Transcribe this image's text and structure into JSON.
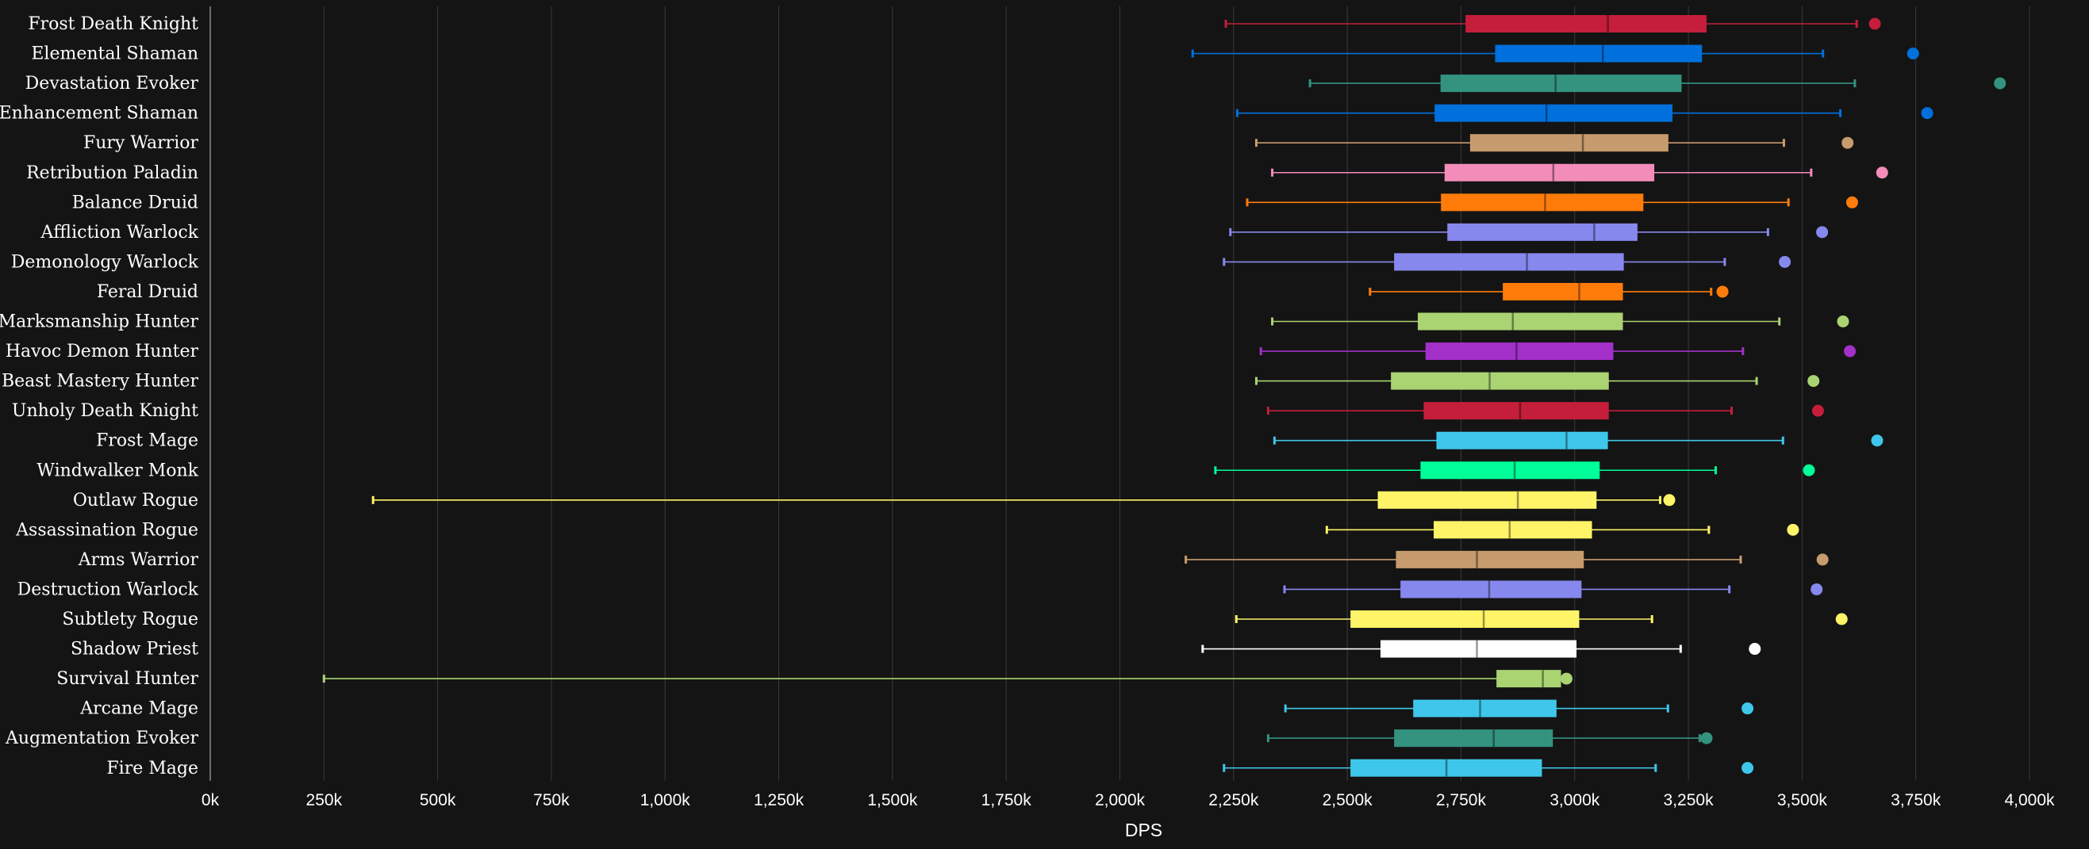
{
  "chart_data": {
    "type": "boxplot",
    "xlabel": "DPS",
    "title": "",
    "xlim": [
      0,
      4000
    ],
    "x_ticks": [
      0,
      250,
      500,
      750,
      1000,
      1250,
      1500,
      1750,
      2000,
      2250,
      2500,
      2750,
      3000,
      3250,
      3500,
      3750,
      4000
    ],
    "x_tick_labels": [
      "0k",
      "250k",
      "500k",
      "750k",
      "1,000k",
      "1,250k",
      "1,500k",
      "1,750k",
      "2,000k",
      "2,250k",
      "2,500k",
      "2,750k",
      "3,000k",
      "3,250k",
      "3,500k",
      "3,750k",
      "4,000k"
    ],
    "grid": true,
    "units": "thousands",
    "series": [
      {
        "name": "Frost Death Knight",
        "min": 2233,
        "q1": 2760,
        "median": 3073,
        "q3": 3290,
        "max": 3620,
        "outlier": 3660,
        "color": "#C41E3A"
      },
      {
        "name": "Elemental Shaman",
        "min": 2160,
        "q1": 2825,
        "median": 3062,
        "q3": 3280,
        "max": 3546,
        "outlier": 3744,
        "color": "#0070DD"
      },
      {
        "name": "Devastation Evoker",
        "min": 2418,
        "q1": 2705,
        "median": 2958,
        "q3": 3235,
        "max": 3616,
        "outlier": 3935,
        "color": "#33937F"
      },
      {
        "name": "Enhancement Shaman",
        "min": 2258,
        "q1": 2692,
        "median": 2938,
        "q3": 3215,
        "max": 3584,
        "outlier": 3775,
        "color": "#0070DD"
      },
      {
        "name": "Fury Warrior",
        "min": 2300,
        "q1": 2770,
        "median": 3018,
        "q3": 3206,
        "max": 3460,
        "outlier": 3600,
        "color": "#C69B6D"
      },
      {
        "name": "Retribution Paladin",
        "min": 2335,
        "q1": 2714,
        "median": 2953,
        "q3": 3175,
        "max": 3520,
        "outlier": 3676,
        "color": "#F48CBA"
      },
      {
        "name": "Balance Druid",
        "min": 2280,
        "q1": 2706,
        "median": 2935,
        "q3": 3151,
        "max": 3470,
        "outlier": 3610,
        "color": "#FF7C0A"
      },
      {
        "name": "Affliction Warlock",
        "min": 2243,
        "q1": 2720,
        "median": 3043,
        "q3": 3138,
        "max": 3425,
        "outlier": 3544,
        "color": "#8788EE"
      },
      {
        "name": "Demonology Warlock",
        "min": 2229,
        "q1": 2603,
        "median": 2895,
        "q3": 3108,
        "max": 3330,
        "outlier": 3462,
        "color": "#8788EE"
      },
      {
        "name": "Feral Druid",
        "min": 2550,
        "q1": 2842,
        "median": 3010,
        "q3": 3106,
        "max": 3300,
        "outlier": 3325,
        "color": "#FF7C0A"
      },
      {
        "name": "Marksmanship Hunter",
        "min": 2335,
        "q1": 2655,
        "median": 2864,
        "q3": 3106,
        "max": 3450,
        "outlier": 3590,
        "color": "#AAD372"
      },
      {
        "name": "Havoc Demon Hunter",
        "min": 2310,
        "q1": 2672,
        "median": 2872,
        "q3": 3085,
        "max": 3370,
        "outlier": 3605,
        "color": "#A330C9"
      },
      {
        "name": "Beast Mastery Hunter",
        "min": 2300,
        "q1": 2596,
        "median": 2813,
        "q3": 3075,
        "max": 3400,
        "outlier": 3525,
        "color": "#AAD372"
      },
      {
        "name": "Unholy Death Knight",
        "min": 2326,
        "q1": 2668,
        "median": 2880,
        "q3": 3075,
        "max": 3345,
        "outlier": 3535,
        "color": "#C41E3A"
      },
      {
        "name": "Frost Mage",
        "min": 2340,
        "q1": 2696,
        "median": 2982,
        "q3": 3073,
        "max": 3458,
        "outlier": 3665,
        "color": "#3FC7EB"
      },
      {
        "name": "Windwalker Monk",
        "min": 2210,
        "q1": 2661,
        "median": 2868,
        "q3": 3055,
        "max": 3310,
        "outlier": 3515,
        "color": "#00FF98"
      },
      {
        "name": "Outlaw Rogue",
        "min": 358,
        "q1": 2567,
        "median": 2875,
        "q3": 3048,
        "max": 3188,
        "outlier": 3208,
        "color": "#FFF468"
      },
      {
        "name": "Assassination Rogue",
        "min": 2455,
        "q1": 2690,
        "median": 2857,
        "q3": 3038,
        "max": 3295,
        "outlier": 3480,
        "color": "#FFF468"
      },
      {
        "name": "Arms Warrior",
        "min": 2145,
        "q1": 2607,
        "median": 2785,
        "q3": 3020,
        "max": 3365,
        "outlier": 3545,
        "color": "#C69B6D"
      },
      {
        "name": "Destruction Warlock",
        "min": 2362,
        "q1": 2617,
        "median": 2812,
        "q3": 3015,
        "max": 3340,
        "outlier": 3532,
        "color": "#8788EE"
      },
      {
        "name": "Subtlety Rogue",
        "min": 2256,
        "q1": 2507,
        "median": 2800,
        "q3": 3010,
        "max": 3170,
        "outlier": 3587,
        "color": "#FFF468"
      },
      {
        "name": "Shadow Priest",
        "min": 2182,
        "q1": 2573,
        "median": 2785,
        "q3": 3004,
        "max": 3233,
        "outlier": 3396,
        "color": "#FFFFFF"
      },
      {
        "name": "Survival Hunter",
        "min": 250,
        "q1": 2828,
        "median": 2930,
        "q3": 2970,
        "max": 2982,
        "outlier": 2982,
        "color": "#AAD372"
      },
      {
        "name": "Arcane Mage",
        "min": 2364,
        "q1": 2645,
        "median": 2792,
        "q3": 2960,
        "max": 3205,
        "outlier": 3380,
        "color": "#3FC7EB"
      },
      {
        "name": "Augmentation Evoker",
        "min": 2326,
        "q1": 2603,
        "median": 2822,
        "q3": 2952,
        "max": 3275,
        "outlier": 3290,
        "color": "#33937F"
      },
      {
        "name": "Fire Mage",
        "min": 2229,
        "q1": 2507,
        "median": 2718,
        "q3": 2928,
        "max": 3178,
        "outlier": 3380,
        "color": "#3FC7EB"
      }
    ]
  }
}
